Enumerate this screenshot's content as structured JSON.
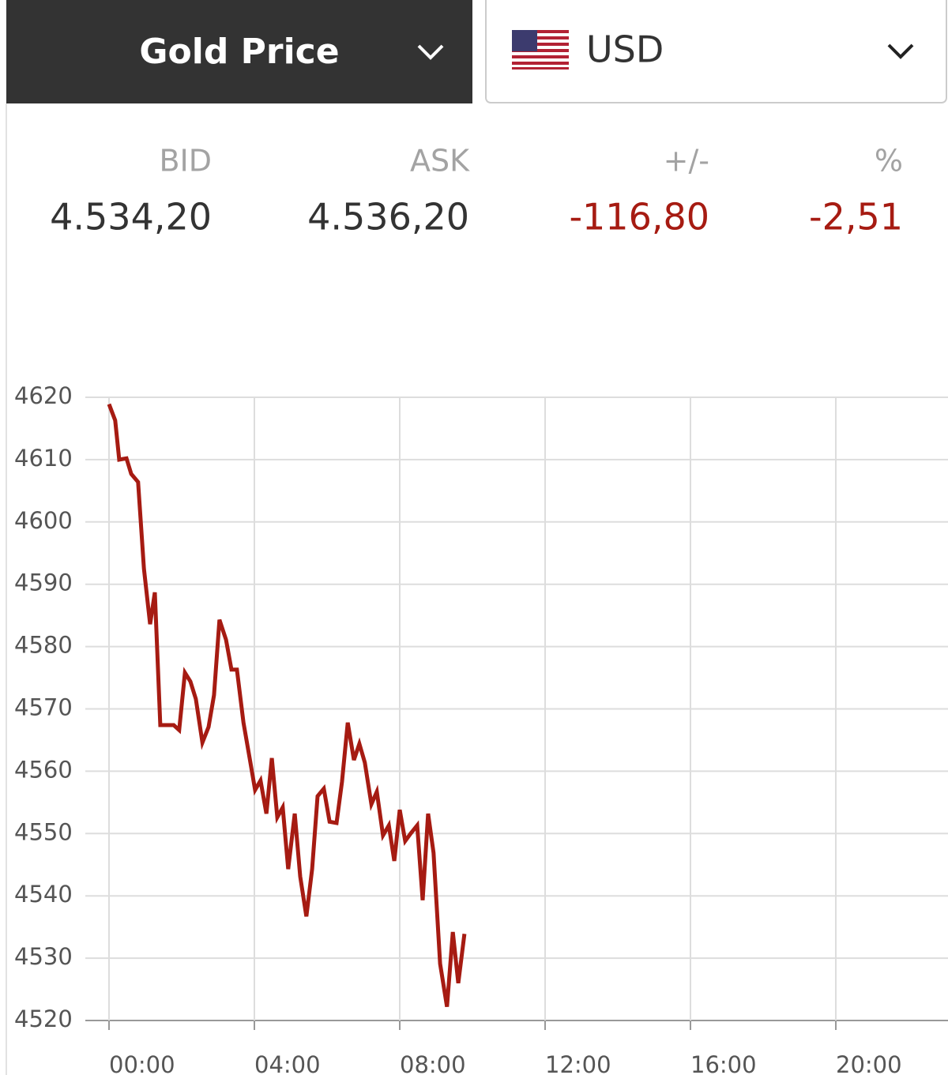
{
  "header": {
    "metal": "Gold Price",
    "currency": "USD"
  },
  "quote": {
    "labels": [
      "BID",
      "ASK",
      "+/-",
      "%"
    ],
    "values": [
      "4.534,20",
      "4.536,20",
      "-116,80",
      "-2,51"
    ]
  },
  "chart_data": {
    "type": "line",
    "color": "#a61b12",
    "x": [
      0,
      0.17,
      0.28,
      0.48,
      0.61,
      0.8,
      0.96,
      1.13,
      1.26,
      1.41,
      1.78,
      1.93,
      2.09,
      2.24,
      2.39,
      2.57,
      2.74,
      2.89,
      3.04,
      3.22,
      3.37,
      3.52,
      3.7,
      3.87,
      4.02,
      4.17,
      4.33,
      4.48,
      4.63,
      4.78,
      4.93,
      5.11,
      5.26,
      5.43,
      5.59,
      5.74,
      5.91,
      6.07,
      6.26,
      6.41,
      6.57,
      6.74,
      6.89,
      7.04,
      7.22,
      7.37,
      7.54,
      7.7,
      7.85,
      8,
      8.15,
      8.3,
      8.48,
      8.63,
      8.78,
      8.93,
      9.11,
      9.3,
      9.46,
      9.61,
      9.78
    ],
    "values": [
      4618.9,
      4616.3,
      4610,
      4610.2,
      4607.7,
      4606.4,
      4592.5,
      4583.6,
      4588.7,
      4567.4,
      4567.4,
      4566.6,
      4575.8,
      4574.4,
      4571.6,
      4564.6,
      4567.1,
      4572.2,
      4584.3,
      4581.1,
      4576.3,
      4576.3,
      4567.8,
      4562.1,
      4557,
      4558.5,
      4553.2,
      4562.1,
      4552.6,
      4554.2,
      4544.3,
      4553.2,
      4543.1,
      4536.7,
      4544.3,
      4556,
      4557.2,
      4551.9,
      4551.7,
      4558.3,
      4567.8,
      4561.8,
      4564.4,
      4561.4,
      4554.7,
      4556.7,
      4549.7,
      4551.3,
      4545.6,
      4553.8,
      4548.8,
      4550,
      4551.3,
      4539.3,
      4553.2,
      4546.9,
      4529.1,
      4522.2,
      4534.2,
      4526,
      4533.9
    ],
    "xlim": [
      0,
      23
    ],
    "xticks": [
      {
        "value": 0,
        "label": "00:00"
      },
      {
        "value": 4,
        "label": "04:00"
      },
      {
        "value": 8,
        "label": "08:00"
      },
      {
        "value": 12,
        "label": "12:00"
      },
      {
        "value": 16,
        "label": "16:00"
      },
      {
        "value": 20,
        "label": "20:00"
      }
    ],
    "ylim": [
      4520,
      4620
    ],
    "yticks": [
      4520,
      4530,
      4540,
      4550,
      4560,
      4570,
      4580,
      4590,
      4600,
      4610,
      4620
    ],
    "grid": true
  }
}
